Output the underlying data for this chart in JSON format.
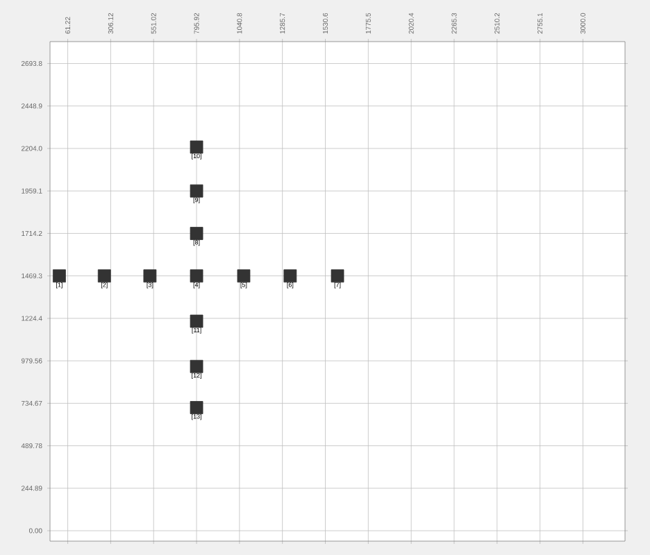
{
  "chart_data": {
    "type": "scatter",
    "color": "#333333",
    "marker": "square",
    "grid": true,
    "x": [
      13,
      270,
      530,
      796,
      1065,
      1330,
      1600,
      796,
      796,
      796,
      796,
      796,
      796
    ],
    "values": [
      1469,
      1469,
      1469,
      1469,
      1469,
      1469,
      1469,
      1714,
      1959,
      2212,
      1208,
      947,
      710
    ],
    "annotations": [
      {
        "text": "[1]",
        "x": 13,
        "y": 1469.3
      },
      {
        "text": "[2]",
        "x": 270,
        "y": 1469.3
      },
      {
        "text": "[3]",
        "x": 530,
        "y": 1469.3
      },
      {
        "text": "[4]",
        "x": 796,
        "y": 1469.3
      },
      {
        "text": "[5]",
        "x": 1065,
        "y": 1469.3
      },
      {
        "text": "[6]",
        "x": 1330,
        "y": 1469.3
      },
      {
        "text": "[7]",
        "x": 1600,
        "y": 1469.3
      },
      {
        "text": "[8]",
        "x": 796,
        "y": 1714.2
      },
      {
        "text": "[9]",
        "x": 796,
        "y": 1959.1
      },
      {
        "text": "[10]",
        "x": 796,
        "y": 2212
      },
      {
        "text": "[11]",
        "x": 796,
        "y": 1208
      },
      {
        "text": "[12]",
        "x": 796,
        "y": 947
      },
      {
        "text": "[13]",
        "x": 796,
        "y": 710
      }
    ],
    "xlim": [
      -40,
      3240
    ],
    "ylim": [
      -60,
      2820
    ],
    "xticks": [
      {
        "value": 61.22,
        "label": "61.22"
      },
      {
        "value": 306.12,
        "label": "306.12"
      },
      {
        "value": 551.02,
        "label": "551.02"
      },
      {
        "value": 795.92,
        "label": "795.92"
      },
      {
        "value": 1040.8,
        "label": "1040.8"
      },
      {
        "value": 1285.7,
        "label": "1285.7"
      },
      {
        "value": 1530.6,
        "label": "1530.6"
      },
      {
        "value": 1775.5,
        "label": "1775.5"
      },
      {
        "value": 2020.4,
        "label": "2020.4"
      },
      {
        "value": 2265.3,
        "label": "2265.3"
      },
      {
        "value": 2510.2,
        "label": "2510.2"
      },
      {
        "value": 2755.1,
        "label": "2755.1"
      },
      {
        "value": 3000.0,
        "label": "3000.0"
      }
    ],
    "yticks": [
      {
        "value": 0,
        "label": "0.00"
      },
      {
        "value": 244.89,
        "label": "244.89"
      },
      {
        "value": 489.78,
        "label": "489.78"
      },
      {
        "value": 734.67,
        "label": "734.67"
      },
      {
        "value": 979.56,
        "label": "979.56"
      },
      {
        "value": 1224.4,
        "label": "1224.4"
      },
      {
        "value": 1469.3,
        "label": "1469.3"
      },
      {
        "value": 1714.2,
        "label": "1714.2"
      },
      {
        "value": 1959.1,
        "label": "1959.1"
      },
      {
        "value": 2204.0,
        "label": "2204.0"
      },
      {
        "value": 2448.9,
        "label": "2448.9"
      },
      {
        "value": 2693.8,
        "label": "2693.8"
      }
    ]
  }
}
